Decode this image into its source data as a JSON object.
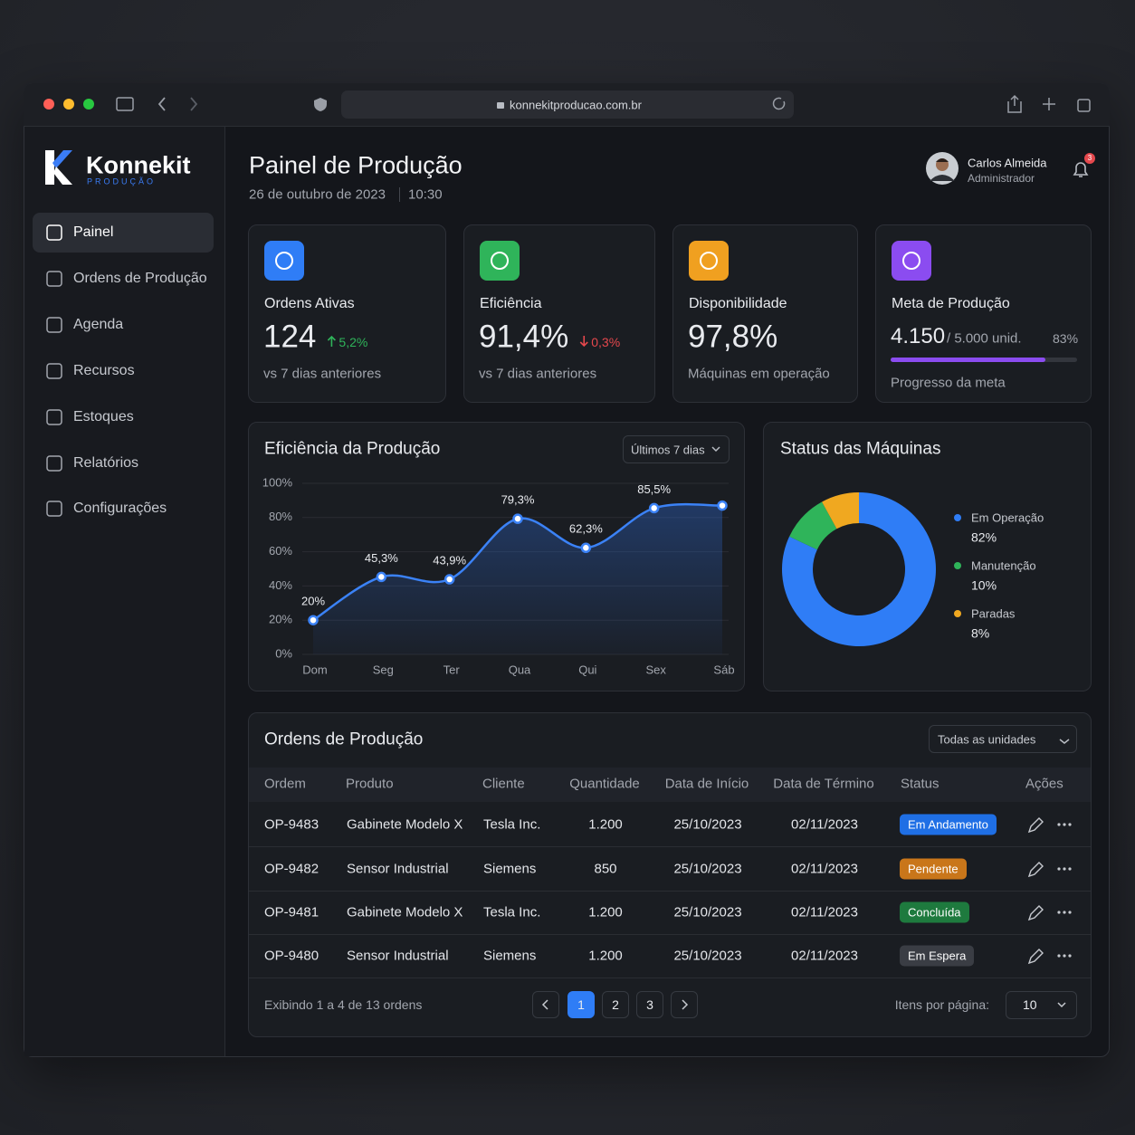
{
  "browser": {
    "url": "konnekitproducao.com.br"
  },
  "sidebar": {
    "brand": "Konnekit",
    "tagline": "PRODUÇÃO",
    "nav": [
      "Painel",
      "Ordens de Produção",
      "Agenda",
      "Recursos",
      "Estoques",
      "Relatórios",
      "Configurações"
    ]
  },
  "header": {
    "title": "Painel de Produção",
    "date": "26 de outubro de 2023",
    "time": "10:30",
    "user_name": "Carlos Almeida",
    "user_role": "Administrador",
    "notifications": "3"
  },
  "kpis": [
    {
      "label": "Ordens Ativas",
      "value": "124",
      "change": "5,2%",
      "trend": "up",
      "note": "vs 7 dias anteriores",
      "color": "#2f7df6"
    },
    {
      "label": "Eficiência",
      "value": "91,4%",
      "change": "0,3%",
      "trend": "down",
      "note": "vs 7 dias anteriores",
      "color": "#2fb45a"
    },
    {
      "label": "Disponibilidade",
      "value": "97,8%",
      "note": "Máquinas em operação",
      "color": "#f0a020"
    },
    {
      "label": "Meta de Produção",
      "value": "4.150",
      "target": "/ 5.000 unid.",
      "progress": 83,
      "progress_label": "83%",
      "note": "Progresso da meta",
      "color": "#8b4cf0"
    }
  ],
  "chart_data": [
    {
      "type": "line",
      "title": "Eficiência da Produção",
      "range": "Últimos 7 dias",
      "categories": [
        "Dom",
        "Seg",
        "Ter",
        "Qua",
        "Qui",
        "Sex",
        "Sáb"
      ],
      "values": [
        20,
        45.3,
        43.9,
        79.3,
        62.3,
        85.5,
        87
      ],
      "value_labels": [
        "20%",
        "45,3%",
        "43,9%",
        "79,3%",
        "62,3%",
        "85,5%",
        null
      ],
      "color": "#3b82f6",
      "ylim": [
        0,
        100
      ],
      "yticks": [
        {
          "value": 0,
          "label": "0%"
        },
        {
          "value": 20,
          "label": "20%"
        },
        {
          "value": 40,
          "label": "40%"
        },
        {
          "value": 60,
          "label": "60%"
        },
        {
          "value": 80,
          "label": "80%"
        },
        {
          "value": 100,
          "label": "100%"
        }
      ],
      "grid": true
    },
    {
      "type": "donut",
      "title": "Status das Máquinas",
      "categories": [
        "Em Operação",
        "Manutenção",
        "Paradas"
      ],
      "values": [
        82,
        10,
        8
      ],
      "value_labels": [
        "82%",
        "10%",
        "8%"
      ],
      "colors": [
        "#2f7df6",
        "#2fb45a",
        "#f0a820"
      ],
      "legend": "right"
    }
  ],
  "table": {
    "title": "Ordens de Produção",
    "filter": "Todas as unidades",
    "columns": [
      "Ordem",
      "Produto",
      "Cliente",
      "Quantidade",
      "Data de Início",
      "Data de Término",
      "Status",
      "Ações"
    ],
    "rows": [
      [
        "OP-9483",
        "Gabinete Modelo X",
        "Tesla Inc.",
        "1.200",
        "25/10/2023",
        "02/11/2023",
        "Em Andamento"
      ],
      [
        "OP-9482",
        "Sensor Industrial",
        "Siemens",
        "850",
        "25/10/2023",
        "02/11/2023",
        "Pendente"
      ],
      [
        "OP-9481",
        "Gabinete Modelo X",
        "Tesla Inc.",
        "1.200",
        "25/10/2023",
        "02/11/2023",
        "Concluída"
      ],
      [
        "OP-9480",
        "Sensor Industrial",
        "Siemens",
        "1.200",
        "25/10/2023",
        "02/11/2023",
        "Em Espera"
      ]
    ],
    "status_colors": [
      "#1f6fe5",
      "#c9761a",
      "#1e7a3e",
      "#3a3d44"
    ],
    "summary": "Exibindo 1 a 4 de 13 ordens",
    "pages": [
      "1",
      "2",
      "3"
    ],
    "per_page_label": "Itens por página:",
    "per_page": "10"
  }
}
